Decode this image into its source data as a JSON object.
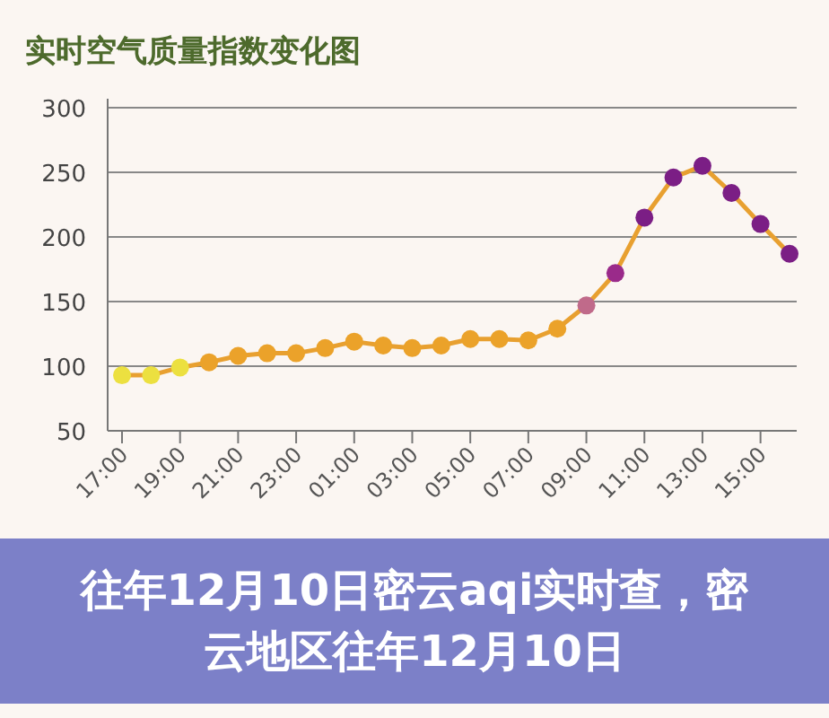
{
  "chart_data": {
    "type": "line",
    "title": "实时空气质量指数变化图",
    "categories": [
      "17:00",
      null,
      "19:00",
      null,
      "21:00",
      null,
      "23:00",
      null,
      "01:00",
      null,
      "03:00",
      null,
      "05:00",
      null,
      "07:00",
      null,
      "09:00",
      null,
      "11:00",
      null,
      "13:00",
      null,
      "15:00",
      null
    ],
    "series": [
      {
        "color": "#e8a030",
        "colors": [
          "#ece040",
          "#ece040",
          "#ece040",
          "#eba22a",
          "#eba22a",
          "#eba22a",
          "#eba22a",
          "#eba22a",
          "#eba22a",
          "#eba22a",
          "#eba22a",
          "#eba22a",
          "#eba22a",
          "#eba22a",
          "#eba22a",
          "#eba22a",
          "#c06a8a",
          "#9a2a8a",
          "#7b1e85",
          "#7b1e85",
          "#7b1e85",
          "#7b1e85",
          "#7b1e85",
          "#7b1e85"
        ],
        "values": [
          93,
          93,
          99,
          103,
          108,
          110,
          110,
          114,
          119,
          116,
          114,
          116,
          121,
          121,
          120,
          129,
          147,
          172,
          215,
          246,
          255,
          234,
          210,
          187
        ]
      }
    ],
    "ylim": [
      50,
      300
    ],
    "yticks": [
      50,
      100,
      150,
      200,
      250,
      300
    ],
    "grid": "y",
    "marker": "circle",
    "annotations": [
      "往年12月10日密云aqi实时查，密云地区往年12月10日"
    ]
  }
}
